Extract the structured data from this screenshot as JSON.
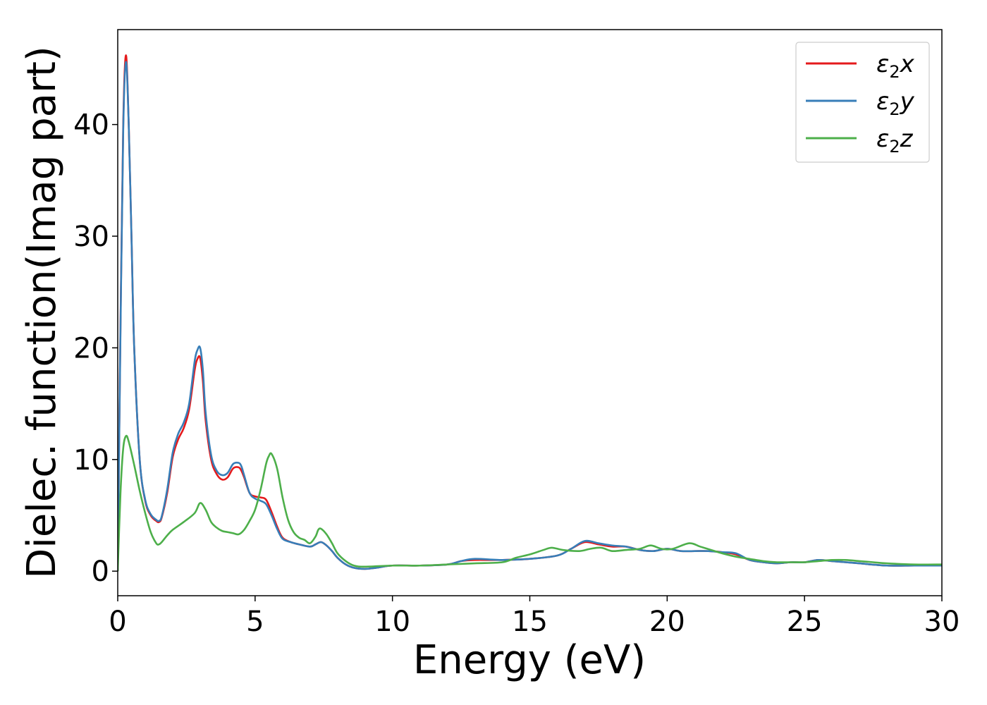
{
  "chart_data": {
    "type": "line",
    "title": "",
    "xlabel": "Energy (eV)",
    "ylabel": "Dielec. function(Imag part)",
    "xlim": [
      0,
      30
    ],
    "ylim": [
      -2.2,
      48.5
    ],
    "xticks": [
      0,
      5,
      10,
      15,
      20,
      25,
      30
    ],
    "yticks": [
      0,
      10,
      20,
      30,
      40
    ],
    "grid": false,
    "legend": "top-right",
    "series": [
      {
        "name": "ε₂x",
        "legend_base": "ε",
        "legend_sub": "2",
        "legend_tail": "x",
        "color": "#e41a1c",
        "x": [
          0,
          0.1,
          0.2,
          0.3,
          0.4,
          0.5,
          0.6,
          0.8,
          1.0,
          1.2,
          1.4,
          1.5,
          1.6,
          1.8,
          2.0,
          2.2,
          2.4,
          2.6,
          2.8,
          2.9,
          3.0,
          3.1,
          3.2,
          3.4,
          3.6,
          3.8,
          4.0,
          4.2,
          4.4,
          4.5,
          4.6,
          4.8,
          5.0,
          5.2,
          5.4,
          5.6,
          5.8,
          6.0,
          6.3,
          6.6,
          7.0,
          7.2,
          7.4,
          7.6,
          7.8,
          8.0,
          8.3,
          8.6,
          9.0,
          9.4,
          10,
          11,
          12,
          12.5,
          13,
          14,
          15,
          16,
          16.5,
          17,
          17.5,
          18,
          18.5,
          19,
          19.5,
          20,
          20.5,
          21,
          21.5,
          22,
          22.5,
          23,
          23.5,
          24,
          24.5,
          25,
          25.5,
          26,
          26.5,
          27,
          28,
          29,
          30
        ],
        "y": [
          0,
          22,
          40,
          46.2,
          40,
          30,
          20,
          10,
          6.3,
          5,
          4.5,
          4.4,
          4.8,
          7,
          10.2,
          11.8,
          12.8,
          14.5,
          18,
          19,
          19.1,
          17,
          13.5,
          10,
          8.7,
          8.2,
          8.4,
          9.2,
          9.3,
          9,
          8.4,
          7,
          6.7,
          6.6,
          6.4,
          5.3,
          4,
          3,
          2.6,
          2.4,
          2.2,
          2.4,
          2.6,
          2.3,
          1.8,
          1.2,
          0.6,
          0.3,
          0.2,
          0.3,
          0.5,
          0.5,
          0.6,
          0.9,
          1.0,
          1.0,
          1.1,
          1.4,
          2.0,
          2.6,
          2.4,
          2.2,
          2.2,
          1.9,
          1.8,
          2.0,
          1.8,
          1.8,
          1.8,
          1.7,
          1.5,
          1.0,
          0.8,
          0.7,
          0.8,
          0.8,
          1.0,
          0.9,
          0.8,
          0.7,
          0.5,
          0.5,
          0.5
        ]
      },
      {
        "name": "ε₂y",
        "legend_base": "ε",
        "legend_sub": "2",
        "legend_tail": "y",
        "color": "#377eb8",
        "x": [
          0,
          0.1,
          0.2,
          0.3,
          0.4,
          0.5,
          0.6,
          0.8,
          1.0,
          1.2,
          1.4,
          1.5,
          1.6,
          1.8,
          2.0,
          2.2,
          2.4,
          2.6,
          2.8,
          2.9,
          3.0,
          3.1,
          3.2,
          3.4,
          3.6,
          3.8,
          4.0,
          4.2,
          4.4,
          4.5,
          4.6,
          4.8,
          5.0,
          5.2,
          5.4,
          5.6,
          5.8,
          6.0,
          6.3,
          6.6,
          7.0,
          7.2,
          7.4,
          7.6,
          7.8,
          8.0,
          8.3,
          8.6,
          9.0,
          9.4,
          10,
          11,
          12,
          12.5,
          13,
          14,
          15,
          16,
          16.5,
          17,
          17.5,
          18,
          18.5,
          19,
          19.5,
          20,
          20.5,
          21,
          21.5,
          22,
          22.5,
          23,
          23.5,
          24,
          24.5,
          25,
          25.5,
          26,
          26.5,
          27,
          28,
          29,
          30
        ],
        "y": [
          0,
          21.5,
          39.5,
          45.6,
          40,
          30,
          20,
          10,
          6.4,
          5.1,
          4.6,
          4.5,
          4.9,
          7.3,
          10.6,
          12.3,
          13.3,
          15,
          18.8,
          19.8,
          20,
          18,
          14.2,
          10.4,
          9,
          8.6,
          8.8,
          9.6,
          9.7,
          9.4,
          8.6,
          7,
          6.5,
          6.3,
          6.0,
          5.0,
          3.8,
          2.9,
          2.6,
          2.4,
          2.2,
          2.4,
          2.6,
          2.3,
          1.8,
          1.2,
          0.6,
          0.3,
          0.2,
          0.3,
          0.5,
          0.5,
          0.6,
          0.9,
          1.1,
          1.0,
          1.1,
          1.4,
          2.0,
          2.7,
          2.5,
          2.3,
          2.2,
          1.9,
          1.8,
          2.0,
          1.8,
          1.8,
          1.8,
          1.7,
          1.6,
          1.0,
          0.8,
          0.7,
          0.8,
          0.8,
          1.0,
          0.9,
          0.8,
          0.7,
          0.5,
          0.5,
          0.5
        ]
      },
      {
        "name": "ε₂z",
        "legend_base": "ε",
        "legend_sub": "2",
        "legend_tail": "z",
        "color": "#4daf4a",
        "x": [
          0,
          0.1,
          0.2,
          0.3,
          0.4,
          0.6,
          0.8,
          1.0,
          1.2,
          1.4,
          1.5,
          1.6,
          1.8,
          2.0,
          2.4,
          2.8,
          3.0,
          3.2,
          3.4,
          3.6,
          3.8,
          4.0,
          4.2,
          4.4,
          4.6,
          4.8,
          5.0,
          5.2,
          5.4,
          5.5,
          5.6,
          5.8,
          6.0,
          6.2,
          6.4,
          6.6,
          6.8,
          7.0,
          7.2,
          7.3,
          7.4,
          7.6,
          7.8,
          8.0,
          8.3,
          8.6,
          9.0,
          10,
          11,
          12,
          13,
          14,
          14.5,
          15,
          15.5,
          15.8,
          16.2,
          16.8,
          17.2,
          17.6,
          18,
          18.5,
          19,
          19.4,
          19.8,
          20.2,
          20.8,
          21.2,
          21.6,
          22,
          22.5,
          23,
          23.5,
          24,
          24.5,
          25,
          25.5,
          26,
          26.5,
          27,
          27.5,
          28,
          29,
          30
        ],
        "y": [
          0,
          7,
          11,
          12.1,
          11.6,
          9.5,
          7.2,
          5.2,
          3.5,
          2.5,
          2.4,
          2.6,
          3.2,
          3.7,
          4.4,
          5.2,
          6.1,
          5.5,
          4.4,
          3.9,
          3.6,
          3.5,
          3.4,
          3.3,
          3.7,
          4.5,
          5.5,
          7.3,
          9.6,
          10.3,
          10.5,
          9.2,
          6.6,
          4.6,
          3.5,
          3.0,
          2.8,
          2.5,
          3.1,
          3.7,
          3.8,
          3.3,
          2.5,
          1.6,
          0.9,
          0.5,
          0.4,
          0.5,
          0.5,
          0.6,
          0.7,
          0.8,
          1.2,
          1.5,
          1.9,
          2.1,
          1.9,
          1.8,
          2.0,
          2.1,
          1.8,
          1.9,
          2.0,
          2.3,
          2.0,
          2.0,
          2.5,
          2.2,
          1.9,
          1.6,
          1.3,
          1.1,
          0.9,
          0.8,
          0.8,
          0.8,
          0.9,
          1.0,
          1.0,
          0.9,
          0.8,
          0.7,
          0.6,
          0.6
        ]
      }
    ]
  }
}
